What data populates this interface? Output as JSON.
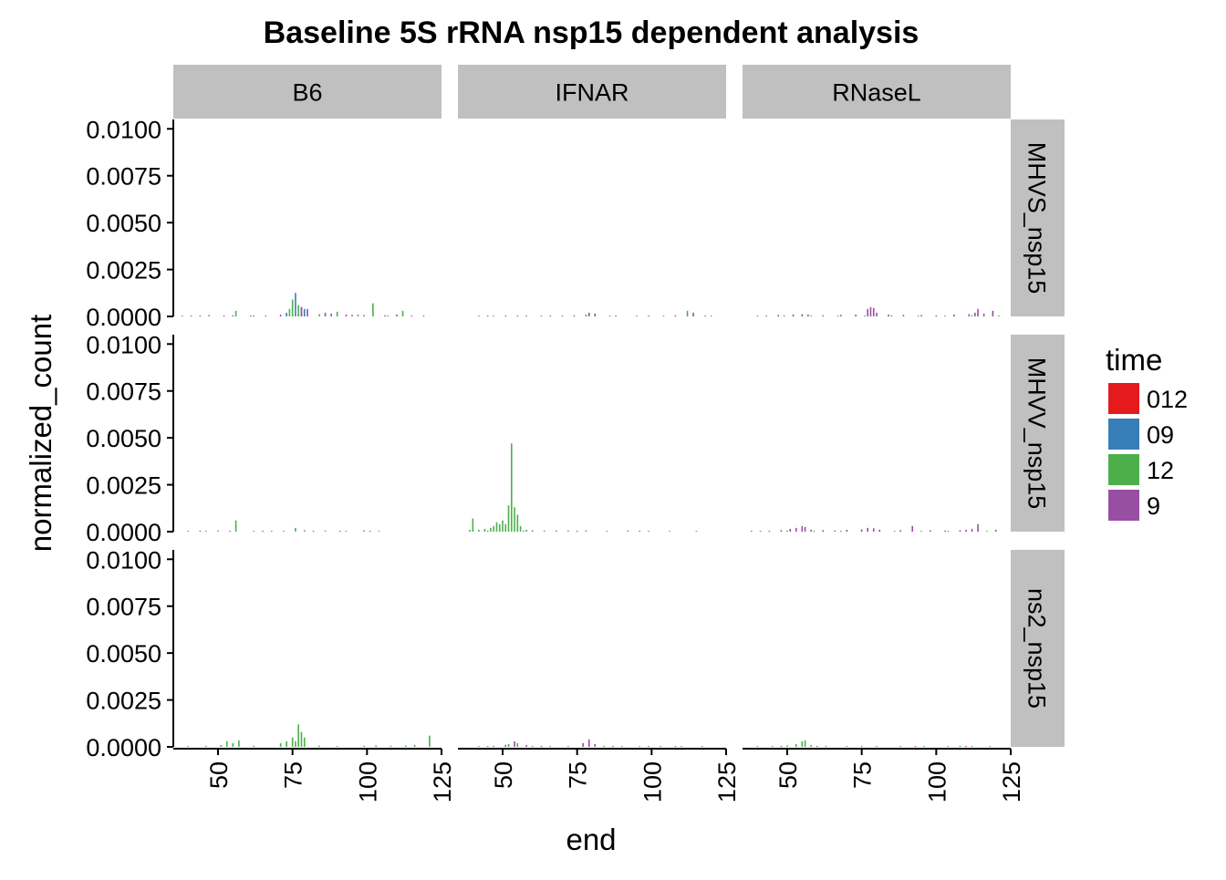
{
  "chart_data": {
    "type": "bar",
    "title": "Baseline 5S rRNA nsp15 dependent analysis",
    "xlabel": "end",
    "ylabel": "normalized_count",
    "xlim": [
      35,
      125
    ],
    "ylim": [
      0,
      0.0105
    ],
    "x_ticks": [
      "50",
      "75",
      "100",
      "125"
    ],
    "y_ticks": [
      "0.0000",
      "0.0025",
      "0.0050",
      "0.0075",
      "0.0100"
    ],
    "column_facets": [
      "B6",
      "IFNAR",
      "RNaseL"
    ],
    "row_facets": [
      "MHVS_nsp15",
      "MHVV_nsp15",
      "ns2_nsp15"
    ],
    "grid": false,
    "legend_position": "right",
    "legend": {
      "title": "time",
      "entries": [
        {
          "label": "012",
          "color": "#e41a1c"
        },
        {
          "label": "09",
          "color": "#377eb8"
        },
        {
          "label": "12",
          "color": "#4daf4a"
        },
        {
          "label": "9",
          "color": "#984ea3"
        }
      ]
    },
    "panels": [
      {
        "row": "MHVS_nsp15",
        "col": "B6",
        "series": [
          {
            "name": "09",
            "x": [
              44,
              55,
              62,
              73,
              76,
              78,
              79,
              88,
              95,
              110
            ],
            "values": [
              5e-05,
              6e-05,
              4e-05,
              0.0002,
              0.00125,
              0.0005,
              0.0004,
              0.00015,
              8e-05,
              0.0001
            ]
          },
          {
            "name": "12",
            "x": [
              38,
              47,
              56,
              66,
              74,
              75,
              77,
              84,
              90,
              97,
              102,
              107,
              112,
              119
            ],
            "values": [
              5e-05,
              8e-05,
              0.0003,
              6e-05,
              0.0004,
              0.0009,
              0.0006,
              0.00012,
              0.00025,
              0.0001,
              0.0007,
              5e-05,
              0.0003,
              6e-05
            ]
          },
          {
            "name": "9",
            "x": [
              41,
              52,
              61,
              71,
              78,
              80,
              86,
              93,
              99,
              106,
              115
            ],
            "values": [
              4e-05,
              5e-05,
              3e-05,
              0.0001,
              0.0005,
              0.0004,
              0.0002,
              0.0001,
              7e-05,
              6e-05,
              5e-05
            ]
          }
        ]
      },
      {
        "row": "MHVS_nsp15",
        "col": "IFNAR",
        "series": [
          {
            "name": "12",
            "x": [
              42,
              47,
              55,
              63,
              70,
              78,
              86,
              95,
              104,
              112,
              120
            ],
            "values": [
              4e-05,
              5e-05,
              6e-05,
              4e-05,
              5e-05,
              0.0001,
              4e-05,
              5e-05,
              4e-05,
              0.0003,
              4e-05
            ]
          },
          {
            "name": "9",
            "x": [
              45,
              51,
              58,
              66,
              74,
              79,
              81,
              88,
              99,
              108,
              114,
              118
            ],
            "values": [
              3e-05,
              4e-05,
              5e-05,
              4e-05,
              6e-05,
              0.0002,
              0.00015,
              4e-05,
              5e-05,
              6e-05,
              0.0002,
              4e-05
            ]
          }
        ]
      },
      {
        "row": "MHVS_nsp15",
        "col": "RNaseL",
        "series": [
          {
            "name": "12",
            "x": [
              40,
              49,
              58,
              67,
              76,
              85,
              94,
              103,
              112,
              121
            ],
            "values": [
              4e-05,
              6e-05,
              5e-05,
              4e-05,
              5e-05,
              6e-05,
              4e-05,
              5e-05,
              6e-05,
              4e-05
            ]
          },
          {
            "name": "9",
            "x": [
              43,
              47,
              52,
              55,
              57,
              62,
              68,
              73,
              77,
              78,
              79,
              80,
              84,
              89,
              95,
              100,
              106,
              111,
              113,
              114,
              116,
              119
            ],
            "values": [
              5e-05,
              8e-05,
              0.0001,
              0.00012,
              0.0001,
              6e-05,
              8e-05,
              0.0001,
              0.0004,
              0.0005,
              0.00045,
              0.0002,
              0.0001,
              8e-05,
              7e-05,
              6e-05,
              0.0001,
              0.00012,
              0.0002,
              0.0004,
              0.00015,
              0.0003
            ]
          }
        ]
      },
      {
        "row": "MHVV_nsp15",
        "col": "B6",
        "series": [
          {
            "name": "12",
            "x": [
              40,
              46,
              50,
              56,
              62,
              68,
              72,
              76,
              79,
              86,
              93,
              99,
              104
            ],
            "values": [
              4e-05,
              5e-05,
              6e-05,
              0.0006,
              5e-05,
              4e-05,
              5e-05,
              0.0002,
              8e-05,
              6e-05,
              5e-05,
              7e-05,
              4e-05
            ]
          },
          {
            "name": "9",
            "x": [
              44,
              54,
              65,
              82,
              91,
              101
            ],
            "values": [
              3e-05,
              4e-05,
              3e-05,
              4e-05,
              3e-05,
              4e-05
            ]
          }
        ]
      },
      {
        "row": "MHVV_nsp15",
        "col": "IFNAR",
        "series": [
          {
            "name": "12",
            "x": [
              39,
              40,
              42,
              44,
              46,
              47,
              48,
              49,
              50,
              51,
              52,
              53,
              54,
              55,
              56,
              58,
              60,
              64,
              68,
              72,
              78,
              85,
              92,
              99,
              106,
              115
            ],
            "values": [
              0.0001,
              0.0007,
              0.0001,
              0.00015,
              0.0002,
              0.0003,
              0.0005,
              0.0004,
              0.0006,
              0.0004,
              0.0014,
              0.0047,
              0.0013,
              0.0009,
              0.0003,
              0.0001,
              8e-05,
              6e-05,
              7e-05,
              6e-05,
              7e-05,
              5e-05,
              6e-05,
              4e-05,
              5e-05,
              4e-05
            ]
          },
          {
            "name": "9",
            "x": [
              45,
              57,
              75,
              96
            ],
            "values": [
              4e-05,
              5e-05,
              4e-05,
              3e-05
            ]
          }
        ]
      },
      {
        "row": "MHVV_nsp15",
        "col": "RNaseL",
        "series": [
          {
            "name": "12",
            "x": [
              41,
              50,
              59,
              68,
              86,
              95,
              104,
              117
            ],
            "values": [
              4e-05,
              6e-05,
              5e-05,
              4e-05,
              5e-05,
              4e-05,
              5e-05,
              4e-05
            ]
          },
          {
            "name": "9",
            "x": [
              38,
              44,
              48,
              51,
              53,
              55,
              56,
              58,
              62,
              66,
              70,
              75,
              77,
              79,
              81,
              88,
              92,
              98,
              103,
              108,
              110,
              112,
              114,
              120
            ],
            "values": [
              3e-05,
              5e-05,
              8e-05,
              0.00015,
              0.0002,
              0.0003,
              0.00025,
              0.0001,
              8e-05,
              6e-05,
              0.0001,
              0.00012,
              0.0002,
              0.00018,
              0.0001,
              8e-05,
              0.0003,
              7e-05,
              6e-05,
              8e-05,
              0.0001,
              0.00015,
              0.0004,
              0.0001
            ]
          }
        ]
      },
      {
        "row": "ns2_nsp15",
        "col": "B6",
        "series": [
          {
            "name": "12",
            "x": [
              40,
              46,
              51,
              53,
              55,
              57,
              62,
              71,
              73,
              75,
              76,
              77,
              78,
              79,
              84,
              90,
              99,
              103,
              108,
              113,
              116,
              121
            ],
            "values": [
              5e-05,
              6e-05,
              0.0001,
              0.0003,
              0.0002,
              0.00035,
              6e-05,
              0.0002,
              0.0003,
              0.0005,
              0.0003,
              0.0012,
              0.0008,
              0.0005,
              7e-05,
              5e-05,
              6e-05,
              8e-05,
              6e-05,
              7e-05,
              0.0001,
              0.0006
            ]
          }
        ]
      },
      {
        "row": "ns2_nsp15",
        "col": "IFNAR",
        "series": [
          {
            "name": "12",
            "x": [
              42,
              47,
              52,
              55,
              60,
              66,
              72,
              84,
              90,
              96,
              103,
              110,
              117
            ],
            "values": [
              5e-05,
              6e-05,
              0.00015,
              0.0002,
              6e-05,
              5e-05,
              4e-05,
              6e-05,
              5e-05,
              4e-05,
              5e-05,
              4e-05,
              5e-05
            ]
          },
          {
            "name": "9",
            "x": [
              45,
              51,
              54,
              58,
              63,
              77,
              79,
              81,
              87,
              99,
              108
            ],
            "values": [
              4e-05,
              0.0001,
              0.0003,
              0.0001,
              5e-05,
              0.0002,
              0.0004,
              0.00015,
              5e-05,
              4e-05,
              4e-05
            ]
          }
        ]
      },
      {
        "row": "ns2_nsp15",
        "col": "RNaseL",
        "series": [
          {
            "name": "12",
            "x": [
              40,
              45,
              50,
              53,
              55,
              56,
              58,
              63,
              70,
              80,
              88,
              96,
              104,
              108,
              112,
              118
            ],
            "values": [
              4e-05,
              5e-05,
              8e-05,
              0.00015,
              0.0003,
              0.00035,
              0.0001,
              6e-05,
              5e-05,
              4e-05,
              5e-05,
              4e-05,
              5e-05,
              6e-05,
              4e-05,
              5e-05
            ]
          },
          {
            "name": "9",
            "x": [
              48,
              60,
              75,
              93,
              110
            ],
            "values": [
              3e-05,
              4e-05,
              3e-05,
              4e-05,
              3e-05
            ]
          }
        ]
      }
    ]
  }
}
